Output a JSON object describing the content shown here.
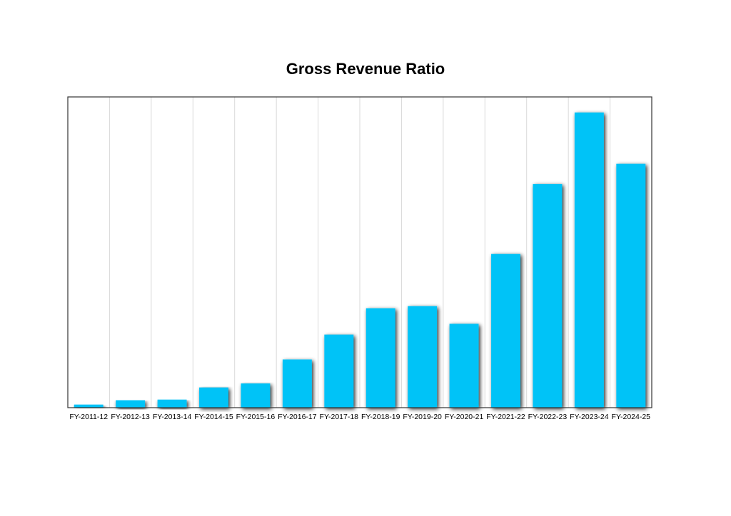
{
  "chart_data": {
    "type": "bar",
    "title": "Gross Revenue Ratio",
    "xlabel": "",
    "ylabel": "",
    "categories": [
      "FY-2011-12",
      "FY-2012-13",
      "FY-2013-14",
      "FY-2014-15",
      "FY-2015-16",
      "FY-2016-17",
      "FY-2017-18",
      "FY-2018-19",
      "FY-2019-20",
      "FY-2020-21",
      "FY-2021-22",
      "FY-2022-23",
      "FY-2023-24",
      "FY-2024-25"
    ],
    "values": [
      1,
      2.4,
      2.6,
      6.5,
      7.8,
      15.5,
      23.5,
      32,
      32.7,
      27,
      49.5,
      72,
      95,
      78.5
    ],
    "ylim": [
      0,
      100
    ],
    "y_ticks_shown": false,
    "grid": "vertical",
    "legend": "none",
    "colors": {
      "bar": "#00c3f7",
      "grid": "#d9d9d9",
      "frame": "#333333",
      "shadow": "#000000"
    }
  }
}
